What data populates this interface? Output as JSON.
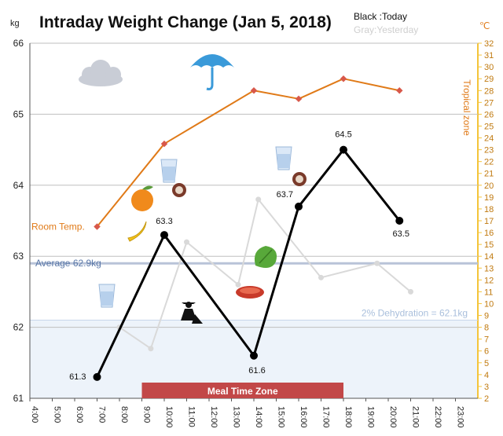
{
  "chart_data": {
    "type": "line",
    "title": "Intraday Weight Change (Jan 5, 2018)",
    "legend": {
      "today": "Black :Today",
      "yesterday": "Gray:Yesterday",
      "placement": "top-right"
    },
    "left_axis": {
      "unit": "kg",
      "range": [
        61,
        66
      ],
      "ticks": [
        "61",
        "62",
        "63",
        "64",
        "65",
        "66"
      ]
    },
    "right_axis": {
      "unit": "℃",
      "label": "Tropical zone",
      "range": [
        2,
        32
      ],
      "ticks": [
        "2",
        "3",
        "4",
        "5",
        "6",
        "7",
        "8",
        "9",
        "10",
        "11",
        "12",
        "13",
        "14",
        "15",
        "16",
        "17",
        "18",
        "19",
        "20",
        "21",
        "22",
        "23",
        "24",
        "25",
        "26",
        "27",
        "28",
        "29",
        "30",
        "31",
        "32"
      ]
    },
    "x_axis": {
      "range": [
        4,
        24
      ],
      "ticks": [
        "4:00",
        "5:00",
        "6:00",
        "7:00",
        "8:00",
        "9:00",
        "10:00",
        "11:00",
        "12:00",
        "13:00",
        "14:00",
        "15:00",
        "16:00",
        "17:00",
        "18:00",
        "19:00",
        "20:00",
        "21:00",
        "22:00",
        "23:00"
      ],
      "tick_values": [
        4,
        5,
        6,
        7,
        8,
        9,
        10,
        11,
        12,
        13,
        14,
        15,
        16,
        17,
        18,
        19,
        20,
        21,
        22,
        23
      ]
    },
    "grid": {
      "horizontal": true,
      "vertical": false
    },
    "series": [
      {
        "key": "today",
        "axis": "left",
        "color": "#000000",
        "x": [
          7,
          10,
          14,
          16,
          18,
          20.5
        ],
        "y": [
          61.3,
          63.3,
          61.6,
          63.7,
          64.5,
          63.5
        ],
        "labels": [
          "61.3",
          "63.3",
          "61.6",
          "63.7",
          "64.5",
          "63.5"
        ]
      },
      {
        "key": "yesterday",
        "axis": "left",
        "color": "#d9d9d9",
        "x": [
          8,
          9.4,
          11,
          13.3,
          14.2,
          17,
          19.5,
          21
        ],
        "y": [
          62,
          61.7,
          63.2,
          62.6,
          63.8,
          62.7,
          62.9,
          62.5
        ]
      },
      {
        "key": "temperature",
        "axis": "right",
        "color": "#e07a18",
        "label": "Room Temp.",
        "x": [
          7,
          10,
          14,
          16,
          18,
          20.5
        ],
        "y": [
          16.5,
          23.5,
          28,
          27.3,
          29,
          28
        ]
      }
    ],
    "average": {
      "value": 62.9,
      "label": "Average 62.9kg"
    },
    "dehydration": {
      "value": 62.1,
      "label": "2% Dehydration  = 62.1kg"
    },
    "meal_zone": {
      "x_start": 9,
      "x_end": 18,
      "label": "Meal Time Zone"
    },
    "tropical_zone_from": 25
  },
  "icons": [
    "cloud-icon",
    "umbrella-icon",
    "orange-icon",
    "banana-icon",
    "water-glass-icon",
    "dish-icon",
    "vegetable-icon",
    "steak-icon",
    "gardening-person-icon"
  ]
}
